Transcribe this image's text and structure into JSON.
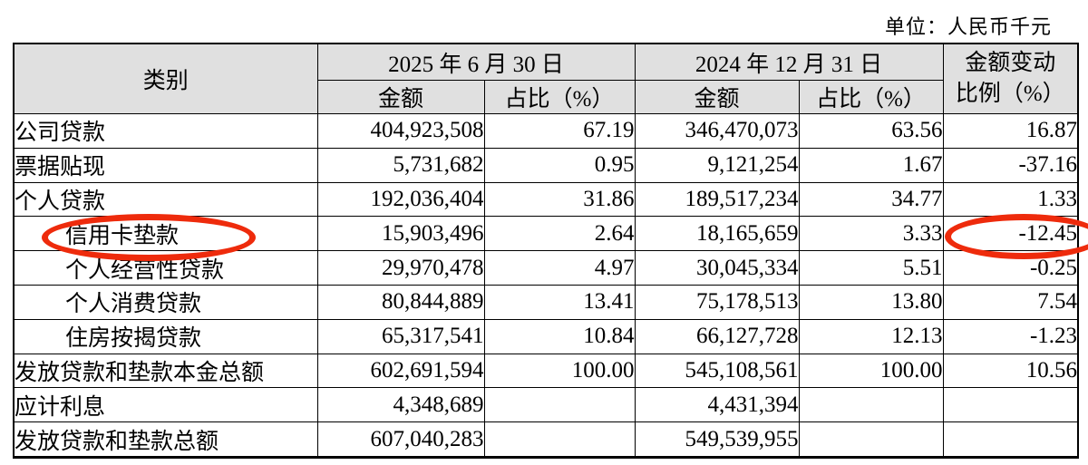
{
  "unit_label": "单位：人民币千元",
  "colors": {
    "header_background": "#e0e0e0",
    "border": "#000000",
    "annotation_red": "#ee2b0c"
  },
  "table": {
    "header": {
      "category": "类别",
      "period_2025": "2025 年 6 月 30 日",
      "period_2024": "2024 年 12 月 31 日",
      "amount": "金额",
      "ratio": "占比（%）",
      "change_line1": "金额变动",
      "change_line2": "比例（%）"
    },
    "rows": [
      {
        "category": "公司贷款",
        "indent": false,
        "amount_2025": "404,923,508",
        "ratio_2025": "67.19",
        "amount_2024": "346,470,073",
        "ratio_2024": "63.56",
        "change": "16.87"
      },
      {
        "category": "票据贴现",
        "indent": false,
        "amount_2025": "5,731,682",
        "ratio_2025": "0.95",
        "amount_2024": "9,121,254",
        "ratio_2024": "1.67",
        "change": "-37.16"
      },
      {
        "category": "个人贷款",
        "indent": false,
        "amount_2025": "192,036,404",
        "ratio_2025": "31.86",
        "amount_2024": "189,517,234",
        "ratio_2024": "34.77",
        "change": "1.33"
      },
      {
        "category": "信用卡垫款",
        "indent": true,
        "circled": true,
        "amount_2025": "15,903,496",
        "ratio_2025": "2.64",
        "amount_2024": "18,165,659",
        "ratio_2024": "3.33",
        "change": "-12.45",
        "change_circled": true
      },
      {
        "category": "个人经营性贷款",
        "indent": true,
        "amount_2025": "29,970,478",
        "ratio_2025": "4.97",
        "amount_2024": "30,045,334",
        "ratio_2024": "5.51",
        "change": "-0.25"
      },
      {
        "category": "个人消费贷款",
        "indent": true,
        "amount_2025": "80,844,889",
        "ratio_2025": "13.41",
        "amount_2024": "75,178,513",
        "ratio_2024": "13.80",
        "change": "7.54"
      },
      {
        "category": "住房按揭贷款",
        "indent": true,
        "amount_2025": "65,317,541",
        "ratio_2025": "10.84",
        "amount_2024": "66,127,728",
        "ratio_2024": "12.13",
        "change": "-1.23"
      },
      {
        "category": "发放贷款和垫款本金总额",
        "indent": false,
        "amount_2025": "602,691,594",
        "ratio_2025": "100.00",
        "amount_2024": "545,108,561",
        "ratio_2024": "100.00",
        "change": "10.56"
      },
      {
        "category": "应计利息",
        "indent": false,
        "amount_2025": "4,348,689",
        "ratio_2025": "",
        "amount_2024": "4,431,394",
        "ratio_2024": "",
        "change": ""
      },
      {
        "category": "发放贷款和垫款总额",
        "indent": false,
        "amount_2025": "607,040,283",
        "ratio_2025": "",
        "amount_2024": "549,539,955",
        "ratio_2024": "",
        "change": ""
      }
    ]
  }
}
